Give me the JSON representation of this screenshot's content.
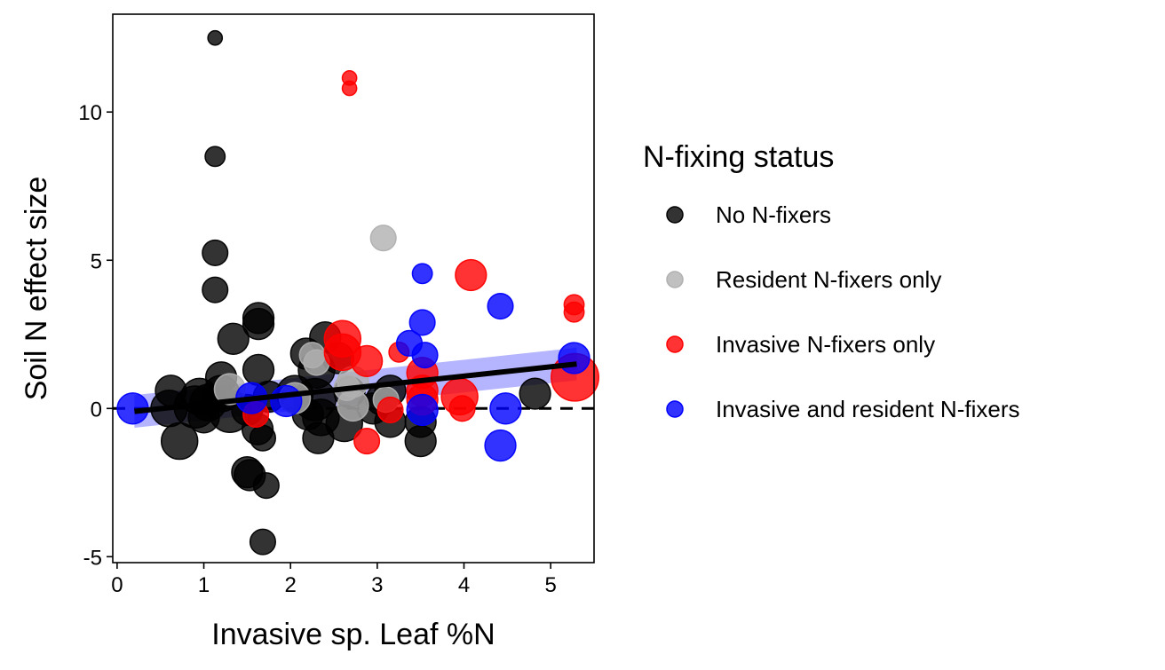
{
  "chart_data": {
    "type": "scatter",
    "title": "",
    "xlabel": "Invasive sp. Leaf %N",
    "ylabel": "Soil N effect size",
    "xlim": [
      -0.05,
      5.5
    ],
    "ylim": [
      -5.2,
      13.3
    ],
    "x_ticks": [
      0,
      1,
      2,
      3,
      4,
      5
    ],
    "y_ticks": [
      -5,
      0,
      5,
      10
    ],
    "x_tick_labels": [
      "0",
      "1",
      "2",
      "3",
      "4",
      "5"
    ],
    "y_tick_labels": [
      "-5",
      "0",
      "5",
      "10"
    ],
    "grid": false,
    "reference_line": {
      "y": 0,
      "style": "dashed"
    },
    "fit_line": {
      "x": [
        0.2,
        5.3
      ],
      "y": [
        -0.1,
        1.5
      ],
      "ci_lower": [
        -0.65,
        0.95
      ],
      "ci_upper": [
        0.45,
        2.05
      ],
      "color": "#000000",
      "ci_color": "#6a6aff"
    },
    "legend": {
      "title": "N-fixing status",
      "position": "right",
      "entries": [
        {
          "label": "No N-fixers",
          "color": "#000000"
        },
        {
          "label": "Resident N-fixers only",
          "color": "#b0b0b0"
        },
        {
          "label": "Invasive N-fixers only",
          "color": "#ff0000"
        },
        {
          "label": "Invasive and resident N-fixers",
          "color": "#0000ff"
        }
      ]
    },
    "series": [
      {
        "name": "No N-fixers",
        "color": "#000000",
        "points": [
          {
            "x": 1.13,
            "y": 12.5,
            "s": 1
          },
          {
            "x": 1.13,
            "y": 8.5,
            "s": 2
          },
          {
            "x": 1.13,
            "y": 5.25,
            "s": 3
          },
          {
            "x": 1.13,
            "y": 4.0,
            "s": 3
          },
          {
            "x": 1.34,
            "y": 2.35,
            "s": 4
          },
          {
            "x": 1.63,
            "y": 3.05,
            "s": 4
          },
          {
            "x": 1.63,
            "y": 2.85,
            "s": 4
          },
          {
            "x": 1.63,
            "y": 1.3,
            "s": 4
          },
          {
            "x": 1.2,
            "y": 1.05,
            "s": 4
          },
          {
            "x": 0.62,
            "y": 0.6,
            "s": 4
          },
          {
            "x": 0.95,
            "y": 0.4,
            "s": 5
          },
          {
            "x": 1.05,
            "y": 0.2,
            "s": 5
          },
          {
            "x": 1.2,
            "y": 0.5,
            "s": 5
          },
          {
            "x": 1.3,
            "y": -0.1,
            "s": 6
          },
          {
            "x": 0.9,
            "y": 0.05,
            "s": 6
          },
          {
            "x": 0.6,
            "y": 0.0,
            "s": 5
          },
          {
            "x": 0.72,
            "y": -1.1,
            "s": 5
          },
          {
            "x": 1.0,
            "y": -0.3,
            "s": 4
          },
          {
            "x": 1.5,
            "y": -0.05,
            "s": 4
          },
          {
            "x": 1.62,
            "y": -0.7,
            "s": 4
          },
          {
            "x": 1.68,
            "y": -1.0,
            "s": 3
          },
          {
            "x": 1.5,
            "y": -2.15,
            "s": 4
          },
          {
            "x": 1.53,
            "y": -2.25,
            "s": 4
          },
          {
            "x": 1.72,
            "y": -2.6,
            "s": 3
          },
          {
            "x": 1.68,
            "y": -4.5,
            "s": 3
          },
          {
            "x": 1.75,
            "y": 0.4,
            "s": 4
          },
          {
            "x": 2.05,
            "y": 0.5,
            "s": 5
          },
          {
            "x": 2.18,
            "y": 1.85,
            "s": 4
          },
          {
            "x": 2.4,
            "y": 2.4,
            "s": 4
          },
          {
            "x": 2.3,
            "y": 1.3,
            "s": 5
          },
          {
            "x": 2.28,
            "y": 0.3,
            "s": 6
          },
          {
            "x": 2.35,
            "y": -0.3,
            "s": 5
          },
          {
            "x": 2.2,
            "y": -0.2,
            "s": 4
          },
          {
            "x": 2.32,
            "y": -1.0,
            "s": 4
          },
          {
            "x": 2.55,
            "y": 1.7,
            "s": 4
          },
          {
            "x": 2.62,
            "y": -0.5,
            "s": 5
          },
          {
            "x": 2.68,
            "y": 0.55,
            "s": 4
          },
          {
            "x": 2.95,
            "y": 0.0,
            "s": 4
          },
          {
            "x": 3.05,
            "y": 0.3,
            "s": 4
          },
          {
            "x": 3.15,
            "y": 0.6,
            "s": 4
          },
          {
            "x": 3.15,
            "y": -0.45,
            "s": 4
          },
          {
            "x": 3.5,
            "y": -1.1,
            "s": 4
          },
          {
            "x": 3.5,
            "y": -0.45,
            "s": 4
          },
          {
            "x": 4.82,
            "y": 0.5,
            "s": 4
          }
        ]
      },
      {
        "name": "Resident N-fixers only",
        "color": "#b0b0b0",
        "points": [
          {
            "x": 3.07,
            "y": 5.75,
            "s": 3
          },
          {
            "x": 1.3,
            "y": 0.65,
            "s": 4
          },
          {
            "x": 2.25,
            "y": 1.8,
            "s": 3
          },
          {
            "x": 2.3,
            "y": 1.55,
            "s": 3
          },
          {
            "x": 2.72,
            "y": 0.9,
            "s": 4
          },
          {
            "x": 2.65,
            "y": 0.7,
            "s": 3
          },
          {
            "x": 2.72,
            "y": 0.1,
            "s": 4
          },
          {
            "x": 3.1,
            "y": 0.3,
            "s": 3
          },
          {
            "x": 2.05,
            "y": 0.35,
            "s": 4
          }
        ]
      },
      {
        "name": "Invasive N-fixers only",
        "color": "#ff0000",
        "points": [
          {
            "x": 2.68,
            "y": 11.15,
            "s": 1
          },
          {
            "x": 2.68,
            "y": 10.8,
            "s": 1
          },
          {
            "x": 4.08,
            "y": 4.5,
            "s": 4
          },
          {
            "x": 5.27,
            "y": 3.5,
            "s": 2
          },
          {
            "x": 5.27,
            "y": 3.25,
            "s": 2
          },
          {
            "x": 2.6,
            "y": 2.35,
            "s": 5
          },
          {
            "x": 2.6,
            "y": 1.9,
            "s": 5
          },
          {
            "x": 2.88,
            "y": 1.6,
            "s": 4
          },
          {
            "x": 3.25,
            "y": 1.9,
            "s": 2
          },
          {
            "x": 3.52,
            "y": 1.2,
            "s": 4
          },
          {
            "x": 3.52,
            "y": 0.6,
            "s": 4
          },
          {
            "x": 3.52,
            "y": 0.3,
            "s": 4
          },
          {
            "x": 3.95,
            "y": 0.4,
            "s": 5
          },
          {
            "x": 3.98,
            "y": 0.0,
            "s": 3
          },
          {
            "x": 5.28,
            "y": 1.05,
            "s": 7
          },
          {
            "x": 3.15,
            "y": -0.05,
            "s": 3
          },
          {
            "x": 2.88,
            "y": -1.1,
            "s": 3
          },
          {
            "x": 1.6,
            "y": -0.2,
            "s": 3
          }
        ]
      },
      {
        "name": "Invasive and resident N-fixers",
        "color": "#0000ff",
        "points": [
          {
            "x": 0.18,
            "y": 0.0,
            "s": 4
          },
          {
            "x": 1.55,
            "y": 0.35,
            "s": 4
          },
          {
            "x": 1.95,
            "y": 0.25,
            "s": 4
          },
          {
            "x": 3.37,
            "y": 2.2,
            "s": 3
          },
          {
            "x": 3.52,
            "y": 4.55,
            "s": 2
          },
          {
            "x": 3.52,
            "y": 2.9,
            "s": 3
          },
          {
            "x": 3.55,
            "y": 1.8,
            "s": 3
          },
          {
            "x": 3.52,
            "y": -0.05,
            "s": 4
          },
          {
            "x": 4.42,
            "y": 3.45,
            "s": 3
          },
          {
            "x": 4.48,
            "y": 0.0,
            "s": 4
          },
          {
            "x": 4.42,
            "y": -1.25,
            "s": 4
          },
          {
            "x": 5.27,
            "y": 1.7,
            "s": 4
          }
        ]
      }
    ]
  }
}
